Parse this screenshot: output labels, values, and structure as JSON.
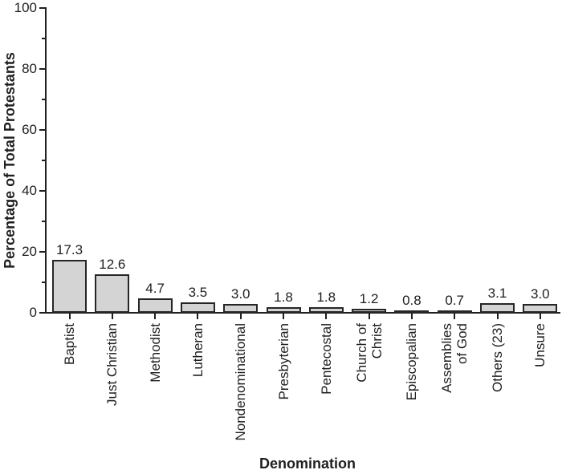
{
  "chart_data": {
    "type": "bar",
    "title": "",
    "xlabel": "Denomination",
    "ylabel": "Percentage of Total Protestants",
    "ylim": [
      0,
      100
    ],
    "yticks_major": [
      0,
      20,
      40,
      60,
      80,
      100
    ],
    "yticks_minor": [
      10,
      30,
      50,
      70,
      90
    ],
    "grid": false,
    "legend": "none",
    "categories": [
      "Baptist",
      "Just Christian",
      "Methodist",
      "Lutheran",
      "Nondenominational",
      "Presbyterian",
      "Pentecostal",
      "Church of\nChrist",
      "Episcopalian",
      "Assemblies\nof God",
      "Others (23)",
      "Unsure"
    ],
    "values": [
      17.3,
      12.6,
      4.7,
      3.5,
      3.0,
      1.8,
      1.8,
      1.2,
      0.8,
      0.7,
      3.1,
      3.0
    ],
    "value_labels": [
      "17.3",
      "12.6",
      "4.7",
      "3.5",
      "3.0",
      "1.8",
      "1.8",
      "1.2",
      "0.8",
      "0.7",
      "3.1",
      "3.0"
    ],
    "colors": {
      "bar_fill": "#d4d4d4",
      "bar_border": "#262626",
      "axis": "#1f1f1f",
      "text": "#1f1f1f",
      "background": "#ffffff"
    }
  }
}
